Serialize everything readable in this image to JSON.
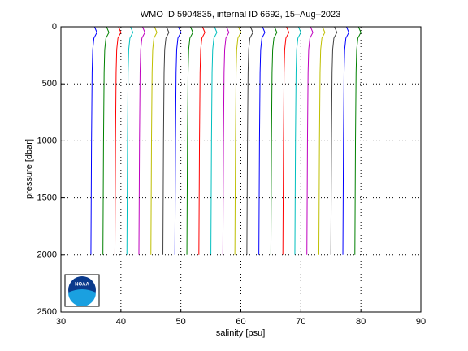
{
  "chart_data": {
    "type": "line",
    "title": "WMO ID 5904835, internal ID 6692, 15–Aug–2023",
    "x_label": "salinity [psu]",
    "y_label": "pressure [dbar]",
    "logo_text": "NOAA",
    "xlim": [
      30,
      90
    ],
    "xticks": [
      30,
      40,
      50,
      60,
      70,
      80,
      90
    ],
    "ylim": [
      0,
      2500
    ],
    "yticks": [
      0,
      500,
      1000,
      1500,
      2000,
      2500
    ],
    "y_reversed": true,
    "grid": true,
    "pressure": [
      0,
      50,
      100,
      200,
      400,
      700,
      1000,
      1500,
      2000
    ],
    "series": [
      {
        "color": "#0000ff",
        "values": [
          35.6,
          36.0,
          35.5,
          35.3,
          35.2,
          35.15,
          35.1,
          35.05,
          35.0
        ]
      },
      {
        "color": "#008000",
        "values": [
          37.6,
          38.0,
          37.5,
          37.3,
          37.2,
          37.15,
          37.1,
          37.05,
          37.0
        ]
      },
      {
        "color": "#ff0000",
        "values": [
          39.6,
          40.0,
          39.5,
          39.3,
          39.2,
          39.15,
          39.1,
          39.05,
          39.0
        ]
      },
      {
        "color": "#00bfbf",
        "values": [
          41.6,
          42.0,
          41.5,
          41.3,
          41.2,
          41.15,
          41.1,
          41.05,
          41.0
        ]
      },
      {
        "color": "#bf00bf",
        "values": [
          43.6,
          44.0,
          43.5,
          43.3,
          43.2,
          43.15,
          43.1,
          43.05,
          43.0
        ]
      },
      {
        "color": "#bfbf00",
        "values": [
          45.6,
          46.0,
          45.5,
          45.3,
          45.2,
          45.15,
          45.1,
          45.05,
          45.0
        ]
      },
      {
        "color": "#404040",
        "values": [
          47.6,
          48.0,
          47.5,
          47.3,
          47.2,
          47.15,
          47.1,
          47.05,
          47.0
        ]
      },
      {
        "color": "#0000ff",
        "values": [
          49.6,
          50.0,
          49.5,
          49.3,
          49.2,
          49.15,
          49.1,
          49.05,
          49.0
        ]
      },
      {
        "color": "#008000",
        "values": [
          51.6,
          52.0,
          51.5,
          51.3,
          51.2,
          51.15,
          51.1,
          51.05,
          51.0
        ]
      },
      {
        "color": "#ff0000",
        "values": [
          53.6,
          54.0,
          53.5,
          53.3,
          53.2,
          53.15,
          53.1,
          53.05,
          53.0
        ]
      },
      {
        "color": "#00bfbf",
        "values": [
          55.6,
          56.0,
          55.5,
          55.3,
          55.2,
          55.15,
          55.1,
          55.05,
          55.0
        ]
      },
      {
        "color": "#bf00bf",
        "values": [
          57.6,
          58.0,
          57.5,
          57.3,
          57.2,
          57.15,
          57.1,
          57.05,
          57.0
        ]
      },
      {
        "color": "#bfbf00",
        "values": [
          59.6,
          60.0,
          59.5,
          59.3,
          59.2,
          59.15,
          59.1,
          59.05,
          59.0
        ]
      },
      {
        "color": "#404040",
        "values": [
          61.6,
          62.0,
          61.5,
          61.3,
          61.2,
          61.15,
          61.1,
          61.05,
          61.0
        ]
      },
      {
        "color": "#0000ff",
        "values": [
          63.6,
          64.0,
          63.5,
          63.3,
          63.2,
          63.15,
          63.1,
          63.05,
          63.0
        ]
      },
      {
        "color": "#008000",
        "values": [
          65.6,
          66.0,
          65.5,
          65.3,
          65.2,
          65.15,
          65.1,
          65.05,
          65.0
        ]
      },
      {
        "color": "#ff0000",
        "values": [
          67.6,
          68.0,
          67.5,
          67.3,
          67.2,
          67.15,
          67.1,
          67.05,
          67.0
        ]
      },
      {
        "color": "#00bfbf",
        "values": [
          69.6,
          70.0,
          69.5,
          69.3,
          69.2,
          69.15,
          69.1,
          69.05,
          69.0
        ]
      },
      {
        "color": "#bf00bf",
        "values": [
          71.6,
          72.0,
          71.5,
          71.3,
          71.2,
          71.15,
          71.1,
          71.05,
          71.0
        ]
      },
      {
        "color": "#bfbf00",
        "values": [
          73.6,
          74.0,
          73.5,
          73.3,
          73.2,
          73.15,
          73.1,
          73.05,
          73.0
        ]
      },
      {
        "color": "#404040",
        "values": [
          75.6,
          76.0,
          75.5,
          75.3,
          75.2,
          75.15,
          75.1,
          75.05,
          75.0
        ]
      },
      {
        "color": "#0000ff",
        "values": [
          77.6,
          78.0,
          77.5,
          77.3,
          77.2,
          77.15,
          77.1,
          77.05,
          77.0
        ]
      },
      {
        "color": "#008000",
        "values": [
          79.6,
          80.0,
          79.5,
          79.3,
          79.2,
          79.15,
          79.1,
          79.05,
          79.0
        ]
      }
    ]
  }
}
